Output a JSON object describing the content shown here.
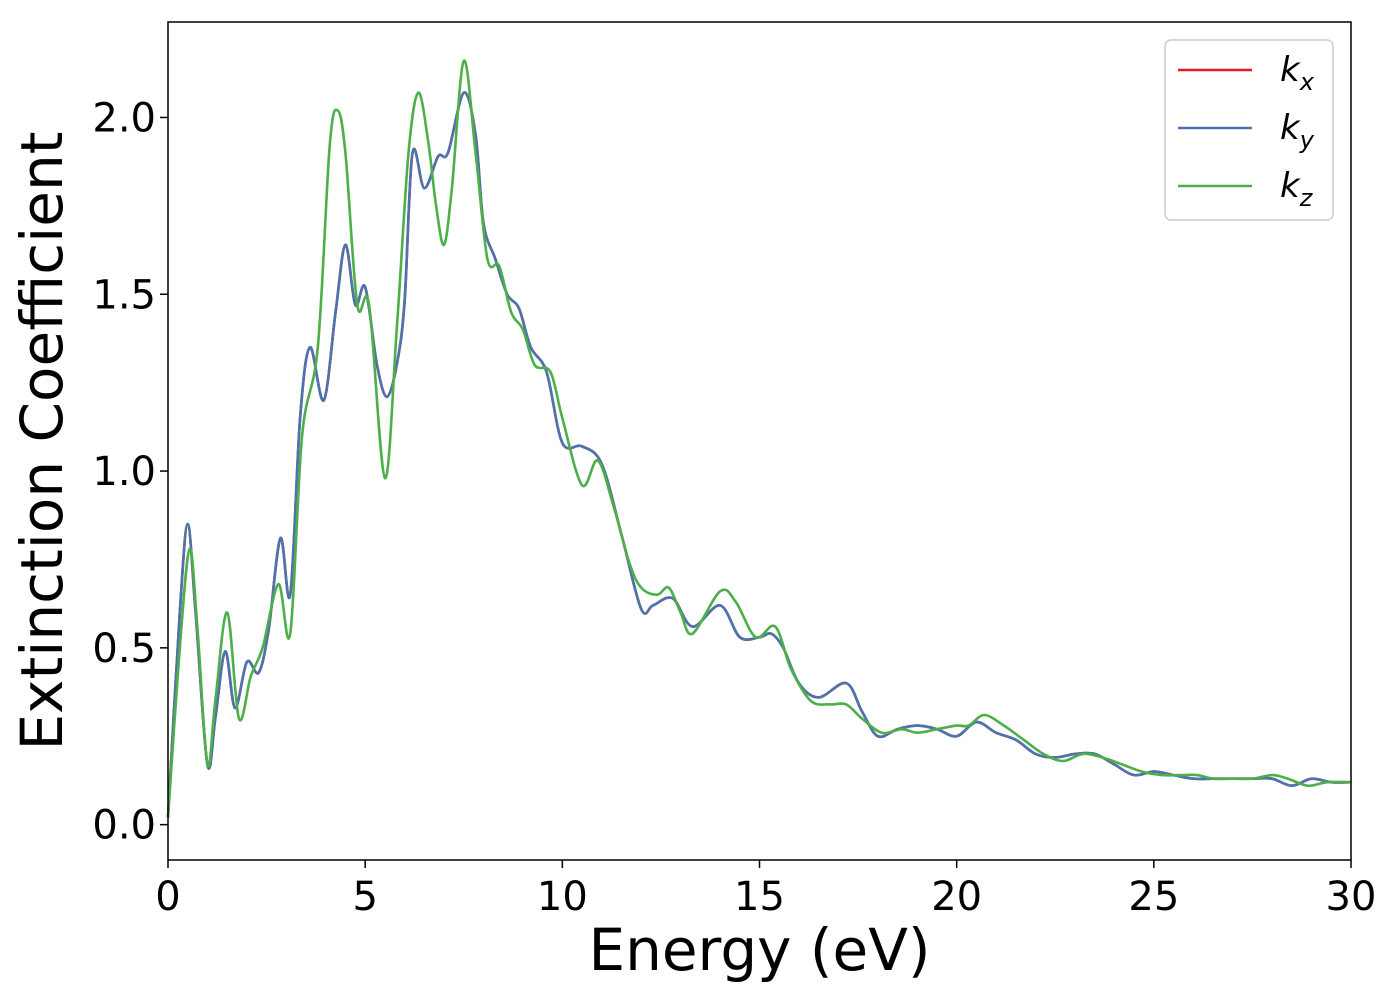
{
  "chart_data": {
    "type": "line",
    "xlabel": "Energy (eV)",
    "ylabel": "Extinction Coefficient",
    "xlim": [
      0,
      30
    ],
    "ylim": [
      -0.1,
      2.27
    ],
    "xticks": [
      0,
      5,
      10,
      15,
      20,
      25,
      30
    ],
    "yticks": [
      0.0,
      0.5,
      1.0,
      1.5,
      2.0
    ],
    "grid": false,
    "legend_position": "top-right",
    "series": [
      {
        "name": "k",
        "subscript": "x",
        "color": "#e41a1c",
        "x": [
          0,
          0.3,
          0.5,
          0.7,
          1.0,
          1.2,
          1.45,
          1.7,
          2.0,
          2.3,
          2.55,
          2.85,
          3.1,
          3.35,
          3.6,
          3.95,
          4.25,
          4.5,
          4.75,
          5.0,
          5.3,
          5.55,
          5.8,
          6.0,
          6.2,
          6.5,
          6.85,
          7.1,
          7.5,
          7.8,
          8.0,
          8.3,
          8.6,
          8.9,
          9.2,
          9.6,
          10.0,
          10.5,
          11.0,
          11.5,
          12.0,
          12.3,
          12.8,
          13.3,
          14.0,
          14.5,
          15.0,
          15.3,
          15.6,
          16.0,
          16.5,
          17.2,
          17.6,
          18.0,
          18.5,
          19.0,
          19.5,
          20.0,
          20.5,
          21.0,
          21.5,
          22.0,
          22.5,
          23.0,
          23.5,
          24.0,
          24.5,
          25.0,
          25.5,
          26.0,
          26.5,
          27.0,
          27.5,
          28.0,
          28.5,
          29.0,
          29.5,
          30.0
        ],
        "y": [
          0.02,
          0.6,
          0.85,
          0.6,
          0.17,
          0.3,
          0.49,
          0.33,
          0.46,
          0.43,
          0.55,
          0.81,
          0.65,
          1.15,
          1.35,
          1.2,
          1.45,
          1.64,
          1.47,
          1.52,
          1.3,
          1.21,
          1.3,
          1.48,
          1.9,
          1.8,
          1.89,
          1.9,
          2.07,
          1.95,
          1.7,
          1.6,
          1.5,
          1.46,
          1.35,
          1.28,
          1.08,
          1.07,
          1.02,
          0.82,
          0.61,
          0.62,
          0.64,
          0.56,
          0.62,
          0.53,
          0.53,
          0.54,
          0.5,
          0.4,
          0.36,
          0.4,
          0.32,
          0.25,
          0.27,
          0.28,
          0.27,
          0.25,
          0.29,
          0.26,
          0.24,
          0.2,
          0.19,
          0.2,
          0.2,
          0.17,
          0.14,
          0.15,
          0.14,
          0.13,
          0.13,
          0.13,
          0.13,
          0.13,
          0.11,
          0.13,
          0.12,
          0.12
        ]
      },
      {
        "name": "k",
        "subscript": "y",
        "color": "#4a74ad",
        "x": [
          0,
          0.3,
          0.5,
          0.7,
          1.0,
          1.2,
          1.45,
          1.7,
          2.0,
          2.3,
          2.55,
          2.85,
          3.1,
          3.35,
          3.6,
          3.95,
          4.25,
          4.5,
          4.75,
          5.0,
          5.3,
          5.55,
          5.8,
          6.0,
          6.2,
          6.5,
          6.85,
          7.1,
          7.5,
          7.8,
          8.0,
          8.3,
          8.6,
          8.9,
          9.2,
          9.6,
          10.0,
          10.5,
          11.0,
          11.5,
          12.0,
          12.3,
          12.8,
          13.3,
          14.0,
          14.5,
          15.0,
          15.3,
          15.6,
          16.0,
          16.5,
          17.2,
          17.6,
          18.0,
          18.5,
          19.0,
          19.5,
          20.0,
          20.5,
          21.0,
          21.5,
          22.0,
          22.5,
          23.0,
          23.5,
          24.0,
          24.5,
          25.0,
          25.5,
          26.0,
          26.5,
          27.0,
          27.5,
          28.0,
          28.5,
          29.0,
          29.5,
          30.0
        ],
        "y": [
          0.02,
          0.6,
          0.85,
          0.6,
          0.17,
          0.3,
          0.49,
          0.33,
          0.46,
          0.43,
          0.55,
          0.81,
          0.65,
          1.15,
          1.35,
          1.2,
          1.45,
          1.64,
          1.47,
          1.52,
          1.3,
          1.21,
          1.3,
          1.48,
          1.9,
          1.8,
          1.89,
          1.9,
          2.07,
          1.95,
          1.7,
          1.6,
          1.5,
          1.46,
          1.35,
          1.28,
          1.08,
          1.07,
          1.02,
          0.82,
          0.61,
          0.62,
          0.64,
          0.56,
          0.62,
          0.53,
          0.53,
          0.54,
          0.5,
          0.4,
          0.36,
          0.4,
          0.32,
          0.25,
          0.27,
          0.28,
          0.27,
          0.25,
          0.29,
          0.26,
          0.24,
          0.2,
          0.19,
          0.2,
          0.2,
          0.17,
          0.14,
          0.15,
          0.14,
          0.13,
          0.13,
          0.13,
          0.13,
          0.13,
          0.11,
          0.13,
          0.12,
          0.12
        ]
      },
      {
        "name": "k",
        "subscript": "z",
        "color": "#4daf4a",
        "x": [
          0,
          0.3,
          0.55,
          0.75,
          1.0,
          1.2,
          1.5,
          1.8,
          2.1,
          2.4,
          2.8,
          3.1,
          3.4,
          3.8,
          4.1,
          4.3,
          4.5,
          4.8,
          5.1,
          5.5,
          5.8,
          6.1,
          6.35,
          6.6,
          6.8,
          7.0,
          7.2,
          7.5,
          7.8,
          8.1,
          8.4,
          8.7,
          9.0,
          9.3,
          9.7,
          10.0,
          10.5,
          10.9,
          11.3,
          11.7,
          12.0,
          12.4,
          12.7,
          13.0,
          13.3,
          14.0,
          14.4,
          14.9,
          15.4,
          15.8,
          16.3,
          16.8,
          17.2,
          17.6,
          18.1,
          18.6,
          19.0,
          19.5,
          20.0,
          20.3,
          20.7,
          21.2,
          21.7,
          22.2,
          22.7,
          23.2,
          23.7,
          24.2,
          24.7,
          25.2,
          25.7,
          26.1,
          26.5,
          27.0,
          27.5,
          28.0,
          28.4,
          28.9,
          29.4,
          30.0
        ],
        "y": [
          0.02,
          0.5,
          0.78,
          0.55,
          0.17,
          0.35,
          0.6,
          0.3,
          0.42,
          0.5,
          0.68,
          0.54,
          1.1,
          1.35,
          1.92,
          2.02,
          1.9,
          1.47,
          1.47,
          0.98,
          1.4,
          1.9,
          2.07,
          1.93,
          1.75,
          1.64,
          1.8,
          2.16,
          1.9,
          1.6,
          1.58,
          1.45,
          1.4,
          1.3,
          1.28,
          1.15,
          0.96,
          1.03,
          0.9,
          0.74,
          0.67,
          0.65,
          0.67,
          0.6,
          0.54,
          0.66,
          0.63,
          0.53,
          0.56,
          0.44,
          0.35,
          0.34,
          0.34,
          0.3,
          0.26,
          0.27,
          0.26,
          0.27,
          0.28,
          0.28,
          0.31,
          0.28,
          0.24,
          0.2,
          0.18,
          0.2,
          0.19,
          0.17,
          0.15,
          0.14,
          0.14,
          0.14,
          0.13,
          0.13,
          0.13,
          0.14,
          0.13,
          0.11,
          0.12,
          0.12
        ]
      }
    ]
  }
}
